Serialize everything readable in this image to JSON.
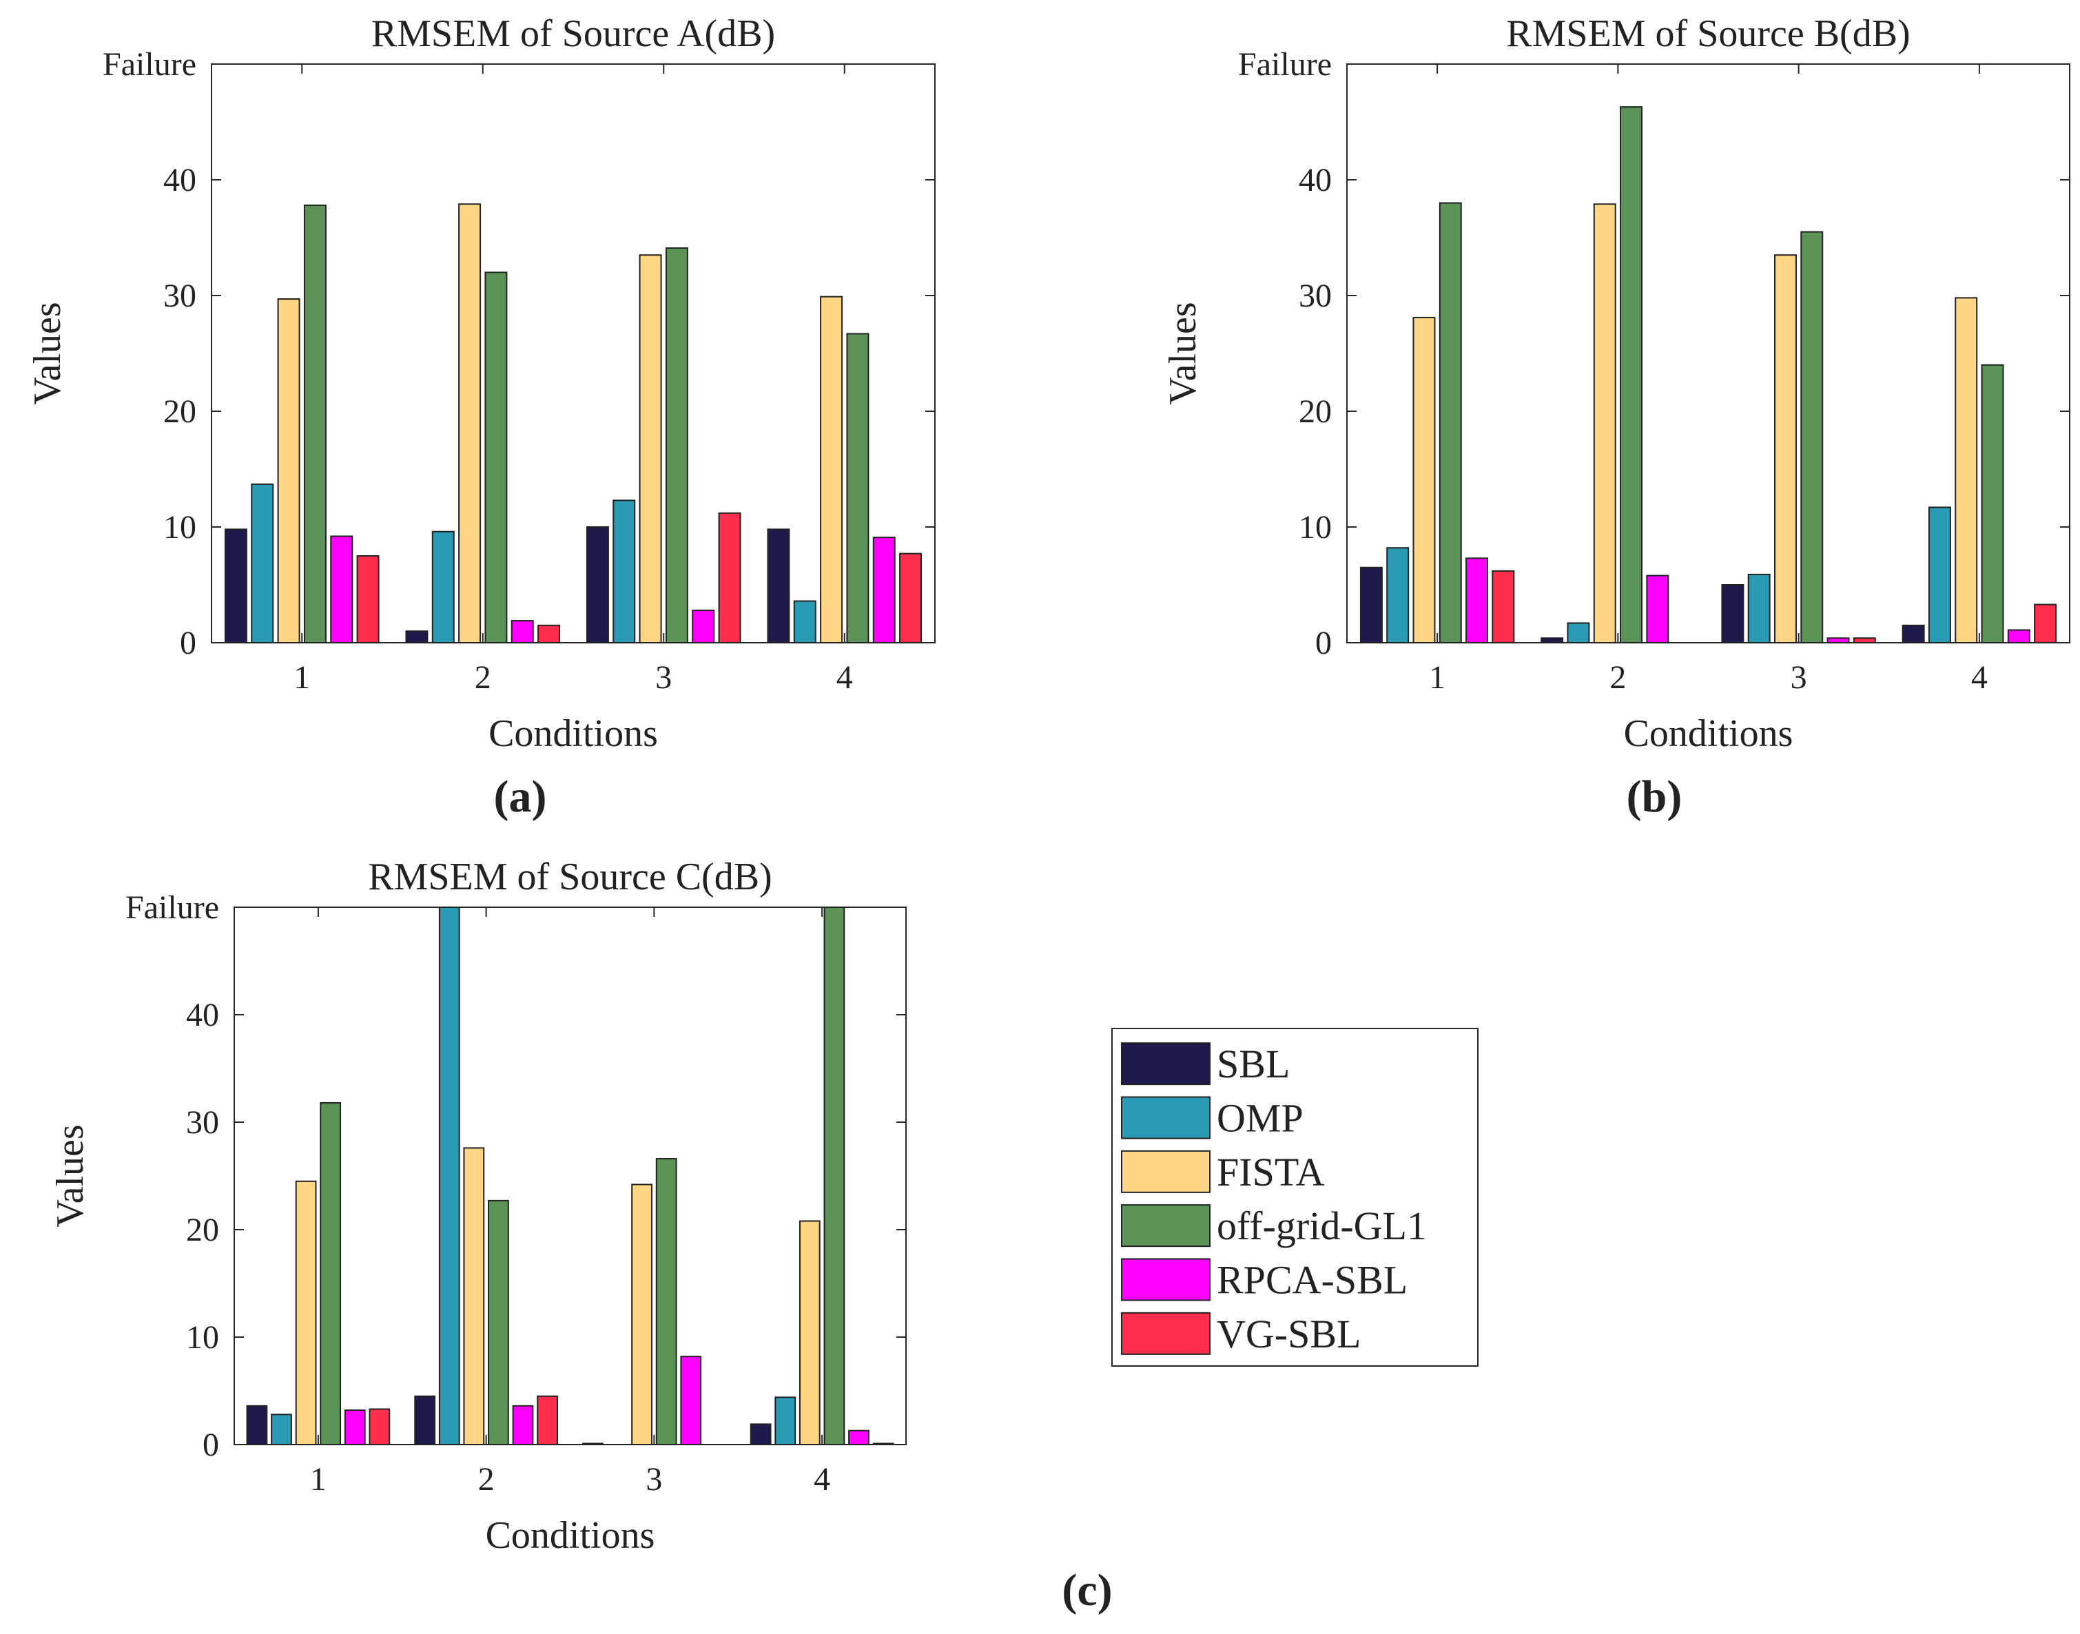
{
  "colors": {
    "SBL": "#1e1a4b",
    "OMP": "#2a9bb4",
    "FISTA": "#ffd685",
    "off-grid-GL1": "#5c9356",
    "RPCA-SBL": "#ff00ff",
    "VG-SBL": "#ff2e4d"
  },
  "legend": {
    "items": [
      "SBL",
      "OMP",
      "FISTA",
      "off-grid-GL1",
      "RPCA-SBL",
      "VG-SBL"
    ]
  },
  "chart_data": [
    {
      "type": "bar",
      "panel_label": "(a)",
      "title": "RMSEM of Source A(dB)",
      "xlabel": "Conditions",
      "ylabel": "Values",
      "categories": [
        "1",
        "2",
        "3",
        "4"
      ],
      "ylim": [
        0,
        50
      ],
      "yticks": [
        0,
        10,
        20,
        30,
        40
      ],
      "top_tick_label": "Failure",
      "series": [
        {
          "name": "SBL",
          "values": [
            9.8,
            1.0,
            10.0,
            9.8
          ]
        },
        {
          "name": "OMP",
          "values": [
            13.7,
            9.6,
            12.3,
            3.6
          ]
        },
        {
          "name": "FISTA",
          "values": [
            29.7,
            37.9,
            33.5,
            29.9
          ]
        },
        {
          "name": "off-grid-GL1",
          "values": [
            37.8,
            32.0,
            34.1,
            26.7
          ]
        },
        {
          "name": "RPCA-SBL",
          "values": [
            9.2,
            1.9,
            2.8,
            9.1
          ]
        },
        {
          "name": "VG-SBL",
          "values": [
            7.5,
            1.5,
            11.2,
            7.7
          ]
        }
      ]
    },
    {
      "type": "bar",
      "panel_label": "(b)",
      "title": "RMSEM of Source B(dB)",
      "xlabel": "Conditions",
      "ylabel": "Values",
      "categories": [
        "1",
        "2",
        "3",
        "4"
      ],
      "ylim": [
        0,
        50
      ],
      "yticks": [
        0,
        10,
        20,
        30,
        40
      ],
      "top_tick_label": "Failure",
      "series": [
        {
          "name": "SBL",
          "values": [
            6.5,
            0.4,
            5.0,
            1.5
          ]
        },
        {
          "name": "OMP",
          "values": [
            8.2,
            1.7,
            5.9,
            11.7
          ]
        },
        {
          "name": "FISTA",
          "values": [
            28.1,
            37.9,
            33.5,
            29.8
          ]
        },
        {
          "name": "off-grid-GL1",
          "values": [
            38.0,
            46.3,
            35.5,
            24.0
          ]
        },
        {
          "name": "RPCA-SBL",
          "values": [
            7.3,
            5.8,
            0.4,
            1.1
          ]
        },
        {
          "name": "VG-SBL",
          "values": [
            6.2,
            0.0,
            0.4,
            3.3
          ]
        }
      ]
    },
    {
      "type": "bar",
      "panel_label": "(c)",
      "title": "RMSEM of Source C(dB)",
      "xlabel": "Conditions",
      "ylabel": "Values",
      "categories": [
        "1",
        "2",
        "3",
        "4"
      ],
      "ylim": [
        0,
        50
      ],
      "yticks": [
        0,
        10,
        20,
        30,
        40
      ],
      "top_tick_label": "Failure",
      "series": [
        {
          "name": "SBL",
          "values": [
            3.6,
            4.5,
            0.1,
            1.9
          ]
        },
        {
          "name": "OMP",
          "values": [
            2.8,
            50,
            0.0,
            4.4
          ]
        },
        {
          "name": "FISTA",
          "values": [
            24.5,
            27.6,
            24.2,
            20.8
          ]
        },
        {
          "name": "off-grid-GL1",
          "values": [
            31.8,
            22.7,
            26.6,
            50
          ]
        },
        {
          "name": "RPCA-SBL",
          "values": [
            3.2,
            3.6,
            8.2,
            1.3
          ]
        },
        {
          "name": "VG-SBL",
          "values": [
            3.3,
            4.5,
            0.0,
            0.1
          ]
        }
      ]
    }
  ]
}
